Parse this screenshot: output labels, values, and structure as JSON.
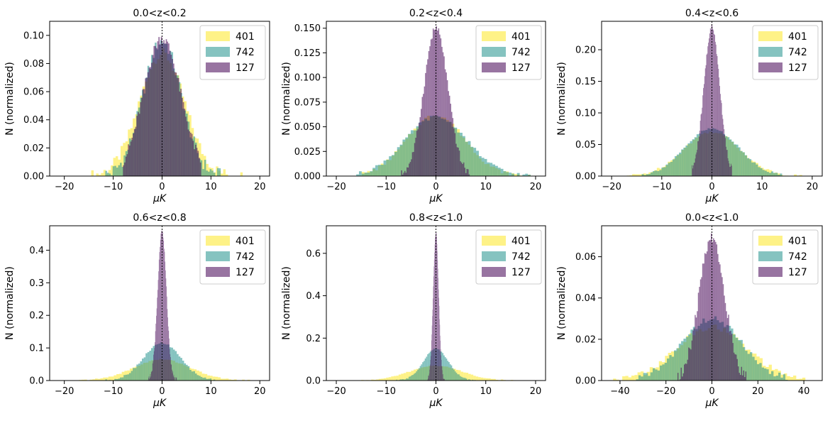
{
  "chart_data": [
    {
      "type": "histogram",
      "title": "0.0<z<0.2",
      "xlabel": "μK",
      "ylabel": "N (normalized)",
      "xlim": [
        -23,
        22
      ],
      "ylim": [
        0,
        0.11
      ],
      "xticks": [
        -20,
        -10,
        0,
        10,
        20
      ],
      "xtick_labels": [
        "−20",
        "−10",
        "0",
        "10",
        "20"
      ],
      "yticks": [
        0,
        0.02,
        0.04,
        0.06,
        0.08,
        0.1
      ],
      "ytick_labels": [
        "0.00",
        "0.02",
        "0.04",
        "0.06",
        "0.08",
        "0.10"
      ],
      "legend_loc": "top-right",
      "series": [
        {
          "name": "401",
          "color": "#fde725",
          "sigma": 4.6,
          "peak": 0.087,
          "range": [
            -15,
            17
          ],
          "jitter": 0.004
        },
        {
          "name": "742",
          "color": "#21918c",
          "sigma": 3.9,
          "peak": 0.096,
          "range": [
            -12,
            12
          ],
          "jitter": 0.005
        },
        {
          "name": "127",
          "color": "#440154",
          "sigma": 3.8,
          "peak": 0.098,
          "range": [
            -8,
            8
          ],
          "jitter": 0.004
        }
      ]
    },
    {
      "type": "histogram",
      "title": "0.2<z<0.4",
      "xlabel": "μK",
      "ylabel": "N (normalized)",
      "xlim": [
        -22,
        22
      ],
      "ylim": [
        0,
        0.157
      ],
      "xticks": [
        -20,
        -10,
        0,
        10,
        20
      ],
      "xtick_labels": [
        "−20",
        "−10",
        "0",
        "10",
        "20"
      ],
      "yticks": [
        0,
        0.025,
        0.05,
        0.075,
        0.1,
        0.125,
        0.15
      ],
      "ytick_labels": [
        "0.000",
        "0.025",
        "0.050",
        "0.075",
        "0.100",
        "0.125",
        "0.150"
      ],
      "legend_loc": "top-right",
      "series": [
        {
          "name": "401",
          "color": "#fde725",
          "sigma": 5.8,
          "peak": 0.062,
          "range": [
            -16,
            19
          ],
          "jitter": 0.002
        },
        {
          "name": "742",
          "color": "#21918c",
          "sigma": 6.2,
          "peak": 0.06,
          "range": [
            -16,
            19
          ],
          "jitter": 0.002
        },
        {
          "name": "127",
          "color": "#440154",
          "sigma": 2.4,
          "peak": 0.15,
          "range": [
            -7,
            7
          ],
          "jitter": 0.004
        }
      ]
    },
    {
      "type": "histogram",
      "title": "0.4<z<0.6",
      "xlabel": "μK",
      "ylabel": "N (normalized)",
      "xlim": [
        -22,
        22
      ],
      "ylim": [
        0,
        0.245
      ],
      "xticks": [
        -20,
        -10,
        0,
        10,
        20
      ],
      "xtick_labels": [
        "−20",
        "−10",
        "0",
        "10",
        "20"
      ],
      "yticks": [
        0,
        0.05,
        0.1,
        0.15,
        0.2
      ],
      "ytick_labels": [
        "0.00",
        "0.05",
        "0.10",
        "0.15",
        "0.20"
      ],
      "legend_loc": "top-right",
      "series": [
        {
          "name": "401",
          "color": "#fde725",
          "sigma": 5.6,
          "peak": 0.07,
          "range": [
            -17,
            18
          ],
          "jitter": 0.002
        },
        {
          "name": "742",
          "color": "#21918c",
          "sigma": 5.3,
          "peak": 0.075,
          "range": [
            -14,
            14
          ],
          "jitter": 0.002
        },
        {
          "name": "127",
          "color": "#440154",
          "sigma": 1.6,
          "peak": 0.235,
          "range": [
            -4,
            4
          ],
          "jitter": 0.006
        }
      ]
    },
    {
      "type": "histogram",
      "title": "0.6<z<0.8",
      "xlabel": "μK",
      "ylabel": "N (normalized)",
      "xlim": [
        -23,
        22
      ],
      "ylim": [
        0,
        0.475
      ],
      "xticks": [
        -20,
        -10,
        0,
        10,
        20
      ],
      "xtick_labels": [
        "−20",
        "−10",
        "0",
        "10",
        "20"
      ],
      "yticks": [
        0,
        0.1,
        0.2,
        0.3,
        0.4
      ],
      "ytick_labels": [
        "0.0",
        "0.1",
        "0.2",
        "0.3",
        "0.4"
      ],
      "legend_loc": "top-right",
      "series": [
        {
          "name": "401",
          "color": "#fde725",
          "sigma": 5.8,
          "peak": 0.065,
          "range": [
            -17,
            18
          ],
          "jitter": 0.002
        },
        {
          "name": "742",
          "color": "#21918c",
          "sigma": 3.8,
          "peak": 0.115,
          "range": [
            -12,
            12
          ],
          "jitter": 0.003
        },
        {
          "name": "127",
          "color": "#440154",
          "sigma": 0.9,
          "peak": 0.46,
          "range": [
            -3,
            3
          ],
          "jitter": 0.008
        }
      ]
    },
    {
      "type": "histogram",
      "title": "0.8<z<1.0",
      "xlabel": "μK",
      "ylabel": "N (normalized)",
      "xlim": [
        -22,
        22
      ],
      "ylim": [
        0,
        0.73
      ],
      "xticks": [
        -20,
        -10,
        0,
        10,
        20
      ],
      "xtick_labels": [
        "−20",
        "−10",
        "0",
        "10",
        "20"
      ],
      "yticks": [
        0,
        0.2,
        0.4,
        0.6
      ],
      "ytick_labels": [
        "0.0",
        "0.2",
        "0.4",
        "0.6"
      ],
      "legend_loc": "top-right",
      "series": [
        {
          "name": "401",
          "color": "#fde725",
          "sigma": 5.3,
          "peak": 0.07,
          "range": [
            -16,
            16
          ],
          "jitter": 0.002
        },
        {
          "name": "742",
          "color": "#21918c",
          "sigma": 2.5,
          "peak": 0.15,
          "range": [
            -8,
            8
          ],
          "jitter": 0.003
        },
        {
          "name": "127",
          "color": "#440154",
          "sigma": 0.55,
          "peak": 0.7,
          "range": [
            -2,
            2
          ],
          "jitter": 0.01
        }
      ]
    },
    {
      "type": "histogram",
      "title": "0.0<z<1.0",
      "xlabel": "μK",
      "ylabel": "N (normalized)",
      "xlim": [
        -48,
        48
      ],
      "ylim": [
        0,
        0.075
      ],
      "xticks": [
        -40,
        -20,
        0,
        20,
        40
      ],
      "xtick_labels": [
        "−40",
        "−20",
        "0",
        "20",
        "40"
      ],
      "yticks": [
        0,
        0.02,
        0.04,
        0.06
      ],
      "ytick_labels": [
        "0.00",
        "0.02",
        "0.04",
        "0.06"
      ],
      "legend_loc": "top-right",
      "series": [
        {
          "name": "401",
          "color": "#fde725",
          "sigma": 15,
          "peak": 0.026,
          "range": [
            -43,
            42
          ],
          "jitter": 0.0015
        },
        {
          "name": "742",
          "color": "#21918c",
          "sigma": 13,
          "peak": 0.03,
          "range": [
            -33,
            33
          ],
          "jitter": 0.0015
        },
        {
          "name": "127",
          "color": "#440154",
          "sigma": 5.5,
          "peak": 0.07,
          "range": [
            -15,
            15
          ],
          "jitter": 0.003
        }
      ]
    }
  ]
}
